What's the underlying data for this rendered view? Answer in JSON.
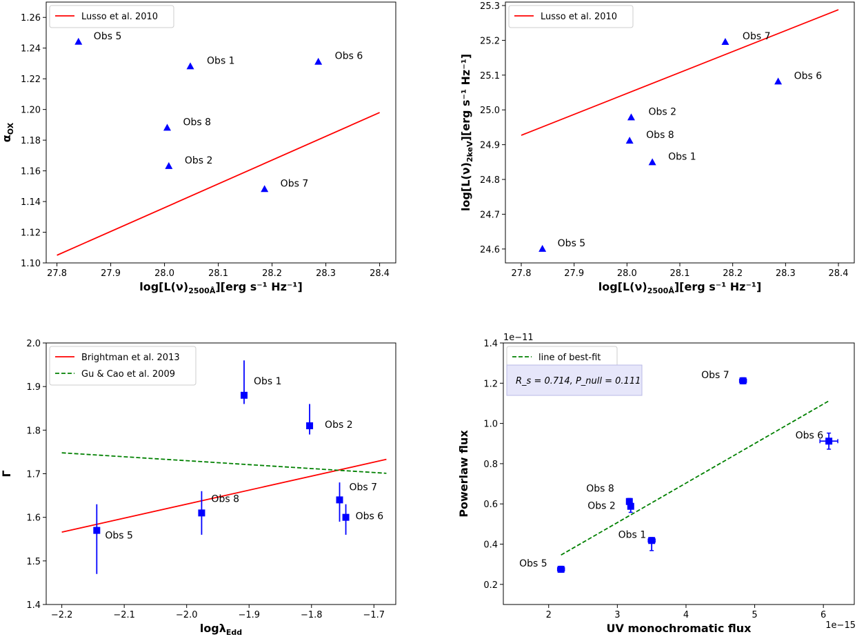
{
  "chart_data": [
    {
      "type": "scatter",
      "xlabel_main": "log[L(ν)",
      "xlabel_sub": "2500Å",
      "xlabel_tail": "][erg s⁻¹ Hz⁻¹]",
      "ylabel_main": "α",
      "ylabel_sub": "OX",
      "xlim": [
        27.78,
        28.43
      ],
      "ylim": [
        1.1,
        1.27
      ],
      "xticks": [
        27.8,
        27.9,
        28.0,
        28.1,
        28.2,
        28.3,
        28.4
      ],
      "xtick_labels": [
        "27.8",
        "27.9",
        "28.0",
        "28.1",
        "28.2",
        "28.3",
        "28.4"
      ],
      "yticks": [
        1.1,
        1.12,
        1.14,
        1.16,
        1.18,
        1.2,
        1.22,
        1.24,
        1.26
      ],
      "ytick_labels": [
        "1.10",
        "1.12",
        "1.14",
        "1.16",
        "1.18",
        "1.20",
        "1.22",
        "1.24",
        "1.26"
      ],
      "lines": [
        {
          "name": "Lusso et al. 2010",
          "color": "#ff0000",
          "dash": "solid",
          "x": [
            27.8,
            28.4
          ],
          "y": [
            1.105,
            1.198
          ]
        }
      ],
      "points": [
        {
          "label": "Obs 5",
          "x": 27.84,
          "y": 1.244
        },
        {
          "label": "Obs 1",
          "x": 28.048,
          "y": 1.228
        },
        {
          "label": "Obs 6",
          "x": 28.286,
          "y": 1.231
        },
        {
          "label": "Obs 8",
          "x": 28.005,
          "y": 1.188
        },
        {
          "label": "Obs 2",
          "x": 28.008,
          "y": 1.163
        },
        {
          "label": "Obs 7",
          "x": 28.186,
          "y": 1.148
        }
      ],
      "marker": "triangle",
      "marker_color": "#0000ff",
      "legend_loc": "upper-left"
    },
    {
      "type": "scatter",
      "xlabel_main": "log[L(ν)",
      "xlabel_sub": "2500Å",
      "xlabel_tail": "][erg s⁻¹ Hz⁻¹]",
      "ylabel_main": "log[L(ν)",
      "ylabel_sub": "2keV",
      "ylabel_tail": "][erg s⁻¹ Hz⁻¹]",
      "xlim": [
        27.77,
        28.43
      ],
      "ylim": [
        24.56,
        25.31
      ],
      "xticks": [
        27.8,
        27.9,
        28.0,
        28.1,
        28.2,
        28.3,
        28.4
      ],
      "xtick_labels": [
        "27.8",
        "27.9",
        "28.0",
        "28.1",
        "28.2",
        "28.3",
        "28.4"
      ],
      "yticks": [
        24.6,
        24.7,
        24.8,
        24.9,
        25.0,
        25.1,
        25.2,
        25.3
      ],
      "ytick_labels": [
        "24.6",
        "24.7",
        "24.8",
        "24.9",
        "25.0",
        "25.1",
        "25.2",
        "25.3"
      ],
      "lines": [
        {
          "name": "Lusso et al. 2010",
          "color": "#ff0000",
          "dash": "solid",
          "x": [
            27.8,
            28.4
          ],
          "y": [
            24.927,
            25.288
          ]
        }
      ],
      "points": [
        {
          "label": "Obs 7",
          "x": 28.186,
          "y": 25.195
        },
        {
          "label": "Obs 6",
          "x": 28.286,
          "y": 25.081
        },
        {
          "label": "Obs 2",
          "x": 28.008,
          "y": 24.978
        },
        {
          "label": "Obs 8",
          "x": 28.005,
          "y": 24.911
        },
        {
          "label": "Obs 1",
          "x": 28.048,
          "y": 24.849
        },
        {
          "label": "Obs 5",
          "x": 27.84,
          "y": 24.6
        }
      ],
      "marker": "triangle",
      "marker_color": "#0000ff",
      "legend_loc": "upper-left"
    },
    {
      "type": "scatter",
      "xlabel_main": "logλ",
      "xlabel_sub": "Edd",
      "ylabel_main": "Γ",
      "xlim": [
        -2.225,
        -1.665
      ],
      "ylim": [
        1.4,
        2.0
      ],
      "xticks": [
        -2.2,
        -2.1,
        -2.0,
        -1.9,
        -1.8,
        -1.7
      ],
      "xtick_labels": [
        "−2.2",
        "−2.1",
        "−2.0",
        "−1.9",
        "−1.8",
        "−1.7"
      ],
      "yticks": [
        1.4,
        1.5,
        1.6,
        1.7,
        1.8,
        1.9,
        2.0
      ],
      "ytick_labels": [
        "1.4",
        "1.5",
        "1.6",
        "1.7",
        "1.8",
        "1.9",
        "2.0"
      ],
      "lines": [
        {
          "name": "Brightman et al. 2013",
          "color": "#ff0000",
          "dash": "solid",
          "x": [
            -2.2,
            -1.68
          ],
          "y": [
            1.566,
            1.733
          ]
        },
        {
          "name": "Gu & Cao et al. 2009",
          "color": "#008000",
          "dash": "dashed",
          "x": [
            -2.2,
            -1.68
          ],
          "y": [
            1.748,
            1.701
          ]
        }
      ],
      "points": [
        {
          "label": "Obs 1",
          "x": -1.908,
          "y": 1.88,
          "yerr_lo": 0.02,
          "yerr_hi": 0.08
        },
        {
          "label": "Obs 2",
          "x": -1.803,
          "y": 1.81,
          "yerr_lo": 0.02,
          "yerr_hi": 0.05
        },
        {
          "label": "Obs 8",
          "x": -1.976,
          "y": 1.61,
          "yerr_lo": 0.05,
          "yerr_hi": 0.05
        },
        {
          "label": "Obs 7",
          "x": -1.755,
          "y": 1.64,
          "yerr_lo": 0.05,
          "yerr_hi": 0.04
        },
        {
          "label": "Obs 6",
          "x": -1.745,
          "y": 1.6,
          "yerr_lo": 0.04,
          "yerr_hi": 0.03
        },
        {
          "label": "Obs 5",
          "x": -2.144,
          "y": 1.57,
          "yerr_lo": 0.1,
          "yerr_hi": 0.06
        }
      ],
      "marker": "square",
      "marker_color": "#0000ff",
      "legend_loc": "upper-left"
    },
    {
      "type": "scatter",
      "xlabel_main": "UV monochromatic flux",
      "ylabel_main": "Powerlaw flux",
      "x_offset_text": "1e−15",
      "y_offset_text": "1e−11",
      "xlim": [
        1.34,
        6.45
      ],
      "ylim": [
        0.1,
        1.4
      ],
      "xticks": [
        2,
        3,
        4,
        5,
        6
      ],
      "xtick_labels": [
        "2",
        "3",
        "4",
        "5",
        "6"
      ],
      "yticks": [
        0.2,
        0.4,
        0.6,
        0.8,
        1.0,
        1.2,
        1.4
      ],
      "ytick_labels": [
        "0.2",
        "0.4",
        "0.6",
        "0.8",
        "1.0",
        "1.2",
        "1.4"
      ],
      "lines": [
        {
          "name": "line of best-fit",
          "color": "#008000",
          "dash": "dashed",
          "x": [
            2.18,
            6.08
          ],
          "y": [
            0.346,
            1.112
          ]
        }
      ],
      "points": [
        {
          "label": "Obs 7",
          "x": 4.83,
          "y": 1.212,
          "yerr_lo": 0.015,
          "yerr_hi": 0.015,
          "xerr": 0.05
        },
        {
          "label": "Obs 6",
          "x": 6.08,
          "y": 0.912,
          "yerr_lo": 0.04,
          "yerr_hi": 0.04,
          "xerr": 0.13
        },
        {
          "label": "Obs 8",
          "x": 3.175,
          "y": 0.612,
          "yerr_lo": 0.015,
          "yerr_hi": 0.015,
          "xerr": 0.04
        },
        {
          "label": "Obs 2",
          "x": 3.195,
          "y": 0.588,
          "yerr_lo": 0.03,
          "yerr_hi": 0.015,
          "xerr": 0.04
        },
        {
          "label": "Obs 1",
          "x": 3.5,
          "y": 0.418,
          "yerr_lo": 0.05,
          "yerr_hi": 0.015,
          "xerr": 0.05
        },
        {
          "label": "Obs 5",
          "x": 2.18,
          "y": 0.275,
          "yerr_lo": 0.015,
          "yerr_hi": 0.015,
          "xerr": 0.05
        }
      ],
      "marker": "square",
      "marker_color": "#0000ff",
      "legend_loc": "upper-left",
      "stats_text": "R_s = 0.714, P_null = 0.111"
    }
  ]
}
